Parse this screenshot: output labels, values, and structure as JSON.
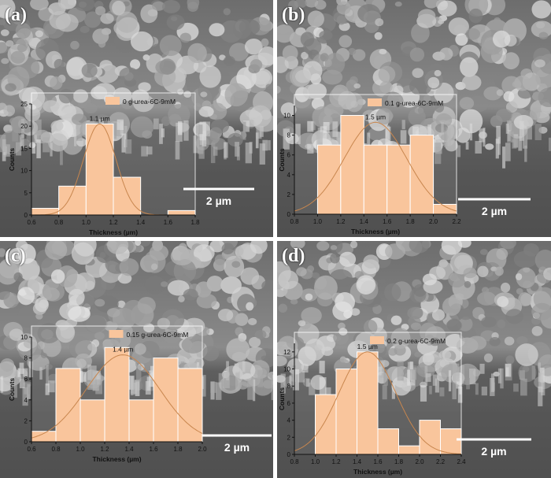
{
  "colors": {
    "bar": "#f9c59c",
    "curve": "#c8864e",
    "text": "#111111",
    "scale": "#ffffff"
  },
  "chart_data": [
    {
      "type": "bar",
      "panel_label": "(a)",
      "legend": "0 g-urea-6C-9mM",
      "xlabel": "Thickness (µm)",
      "ylabel": "Counts",
      "xlim": [
        0.6,
        1.8
      ],
      "ylim": [
        0,
        25
      ],
      "xticks": [
        "0.6",
        "0.8",
        "1.0",
        "1.2",
        "1.4",
        "1.6",
        "1.8"
      ],
      "yticks": [
        "0",
        "5",
        "10",
        "15",
        "20",
        "25"
      ],
      "bin_edges": [
        0.6,
        0.8,
        1.0,
        1.2,
        1.4,
        1.6,
        1.8
      ],
      "values": [
        1.5,
        6.5,
        20.5,
        8.5,
        0,
        1
      ],
      "mean_label": "1.1 µm",
      "fit": {
        "mu": 1.1,
        "sigma": 0.12,
        "peak": 20.5
      },
      "scale_bar": "2 µm"
    },
    {
      "type": "bar",
      "panel_label": "(b)",
      "legend": "0.1 g-urea-6C-9mM",
      "xlabel": "Thickness (µm)",
      "ylabel": "Counts",
      "xlim": [
        0.8,
        2.2
      ],
      "ylim": [
        0,
        11
      ],
      "xticks": [
        "0.8",
        "1.0",
        "1.2",
        "1.4",
        "1.6",
        "1.8",
        "2.0",
        "2.2"
      ],
      "yticks": [
        "0",
        "2",
        "4",
        "6",
        "8",
        "10"
      ],
      "bin_edges": [
        1.0,
        1.2,
        1.4,
        1.6,
        1.8,
        2.0,
        2.2
      ],
      "values": [
        7,
        10,
        7,
        7,
        8,
        1
      ],
      "mean_label": "1.5 µm",
      "fit": {
        "mu": 1.5,
        "sigma": 0.27,
        "peak": 9.3
      },
      "scale_bar": "2 µm"
    },
    {
      "type": "bar",
      "panel_label": "(c)",
      "legend": "0.15 g-urea-6C-9mM",
      "xlabel": "Thickness (µm)",
      "ylabel": "Counts",
      "xlim": [
        0.6,
        2.0
      ],
      "ylim": [
        0,
        10
      ],
      "xticks": [
        "0.6",
        "0.8",
        "1.0",
        "1.2",
        "1.4",
        "1.6",
        "1.8",
        "2.0"
      ],
      "yticks": [
        "0",
        "2",
        "4",
        "6",
        "8",
        "10"
      ],
      "bin_edges": [
        0.6,
        0.8,
        1.0,
        1.2,
        1.4,
        1.6,
        1.8,
        2.0
      ],
      "values": [
        1,
        7,
        4,
        9,
        4,
        8,
        7
      ],
      "mean_label": "1.4 µm",
      "fit": {
        "mu": 1.35,
        "sigma": 0.3,
        "peak": 8.3
      },
      "scale_bar": "2 µm"
    },
    {
      "type": "bar",
      "panel_label": "(d)",
      "legend": "0.2 g-urea-6C-9mM",
      "xlabel": "Thickness (µm)",
      "ylabel": "Counts",
      "xlim": [
        0.8,
        2.4
      ],
      "ylim": [
        0,
        13
      ],
      "xticks": [
        "0.8",
        "1.0",
        "1.2",
        "1.4",
        "1.6",
        "1.8",
        "2.0",
        "2.2",
        "2.4"
      ],
      "yticks": [
        "0",
        "2",
        "4",
        "6",
        "8",
        "10",
        "12"
      ],
      "bin_edges": [
        1.0,
        1.2,
        1.4,
        1.6,
        1.8,
        2.0,
        2.2,
        2.4
      ],
      "values": [
        7,
        10,
        12,
        3,
        1,
        4,
        3
      ],
      "mean_label": "1.5 µm",
      "fit": {
        "mu": 1.5,
        "sigma": 0.27,
        "peak": 12
      },
      "scale_bar": "2 µm"
    }
  ]
}
